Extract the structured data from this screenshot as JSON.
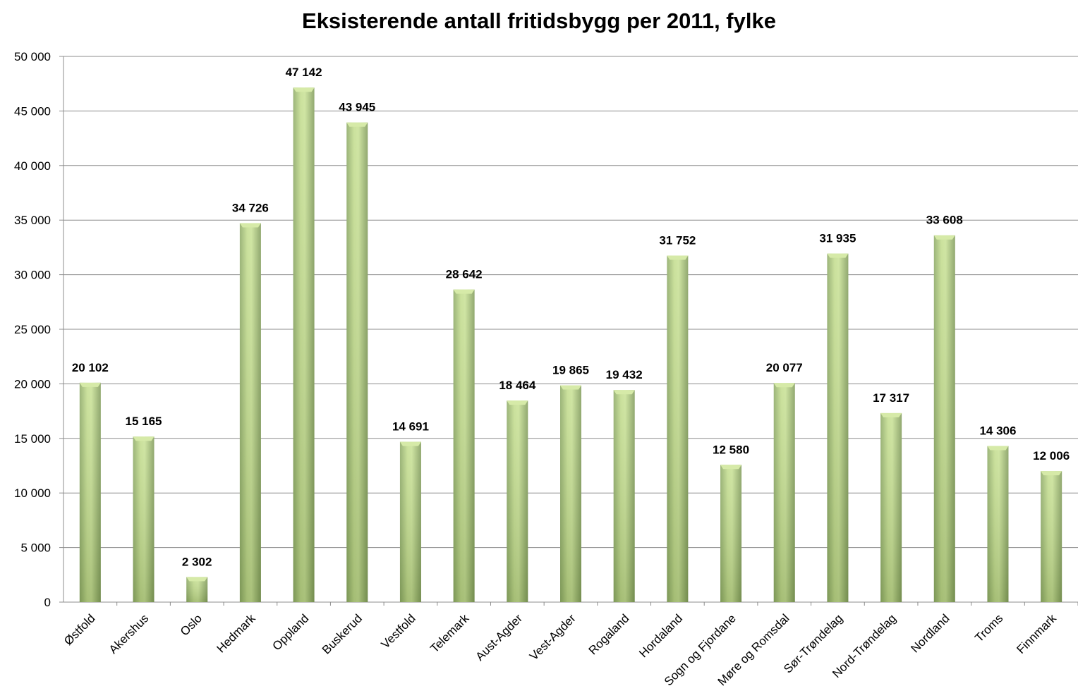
{
  "chart_data": {
    "type": "bar",
    "title": "Eksisterende antall fritidsbygg per 2011, fylke",
    "xlabel": "",
    "ylabel": "",
    "categories": [
      "Østfold",
      "Akershus",
      "Oslo",
      "Hedmark",
      "Oppland",
      "Buskerud",
      "Vestfold",
      "Telemark",
      "Aust-Agder",
      "Vest-Agder",
      "Rogaland",
      "Hordaland",
      "Sogn og Fjordane",
      "Møre og Romsdal",
      "Sør-Trøndelag",
      "Nord-Trøndelag",
      "Nordland",
      "Troms",
      "Finnmark"
    ],
    "values": [
      20102,
      15165,
      2302,
      34726,
      47142,
      43945,
      14691,
      28642,
      18464,
      19865,
      19432,
      31752,
      12580,
      20077,
      31935,
      17317,
      33608,
      14306,
      12006
    ],
    "data_labels": [
      "20 102",
      "15 165",
      "2 302",
      "34 726",
      "47 142",
      "43 945",
      "14 691",
      "28 642",
      "18 464",
      "19 865",
      "19 432",
      "31 752",
      "12 580",
      "20 077",
      "31 935",
      "17 317",
      "33 608",
      "14 306",
      "12 006"
    ],
    "ylim": [
      0,
      50000
    ],
    "yticks": [
      0,
      5000,
      10000,
      15000,
      20000,
      25000,
      30000,
      35000,
      40000,
      45000,
      50000
    ],
    "ytick_labels": [
      "0",
      "5 000",
      "10 000",
      "15 000",
      "20 000",
      "25 000",
      "30 000",
      "35 000",
      "40 000",
      "45 000",
      "50 000"
    ],
    "grid": true,
    "legend": "none",
    "colors": {
      "bar_light": "#d6eaa8",
      "bar_mid": "#b5d27e",
      "bar_dark": "#7f9a58",
      "grid": "#8c8c8c",
      "axis": "#8c8c8c"
    }
  }
}
